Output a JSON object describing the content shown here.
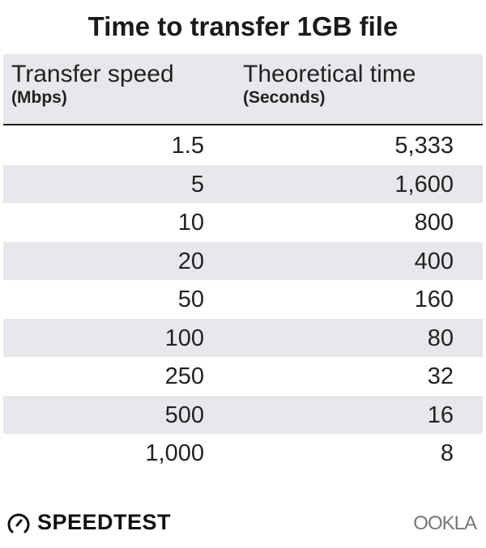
{
  "chart_data": {
    "type": "table",
    "title": "Time to transfer 1GB file",
    "columns": [
      {
        "label": "Transfer speed",
        "unit": "(Mbps)"
      },
      {
        "label": "Theoretical time",
        "unit": "(Seconds)"
      }
    ],
    "rows": [
      [
        "1.5",
        "5,333"
      ],
      [
        "5",
        "1,600"
      ],
      [
        "10",
        "800"
      ],
      [
        "20",
        "400"
      ],
      [
        "50",
        "160"
      ],
      [
        "100",
        "80"
      ],
      [
        "250",
        "32"
      ],
      [
        "500",
        "16"
      ],
      [
        "1,000",
        "8"
      ]
    ],
    "colors": {
      "header_bg": "#e8e8ec",
      "stripe": "#e8e8ec",
      "text": "#222222"
    }
  },
  "branding": {
    "speedtest": "SPEEDTEST",
    "ookla": "OOKLA"
  }
}
